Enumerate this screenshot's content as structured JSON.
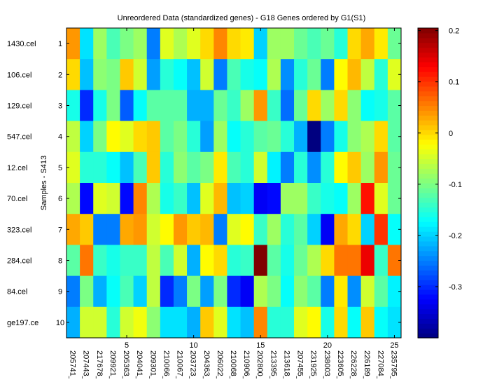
{
  "chart_data": {
    "type": "heatmap",
    "title": "Unreordered Data (standardized genes) - G18 Genes ordered by G1(S1)",
    "ylabel": "Samples - S413",
    "xlabel": "",
    "x_ticks": [
      "5",
      "10",
      "15",
      "20",
      "25"
    ],
    "x_tick_positions": [
      5,
      10,
      15,
      20,
      25
    ],
    "y_ticks": [
      "1",
      "2",
      "3",
      "4",
      "5",
      "6",
      "7",
      "8",
      "9",
      "10"
    ],
    "columns": [
      "205741_",
      "207443_",
      "217678_",
      "209921_",
      "205363_",
      "204041_",
      "209301_",
      "210066_",
      "210067_",
      "203723_",
      "204363_",
      "206022_",
      "210068_",
      "210906_",
      "202800_",
      "213395_",
      "213618_",
      "207455_",
      "231925_",
      "238003_",
      "223605_",
      "226228_",
      "226189_",
      "227084_",
      "235795_"
    ],
    "rows": [
      "1430.cel",
      "106.cel",
      "129.cel",
      "547.cel",
      "12.cel",
      "70.cel",
      "323.cel",
      "284.cel",
      "84.cel",
      "ge197.ce"
    ],
    "values": [
      [
        0.04,
        -0.19,
        -0.08,
        -0.13,
        -0.1,
        -0.08,
        -0.25,
        -0.04,
        -0.07,
        -0.04,
        0.0,
        0.05,
        0.0,
        -0.01,
        -0.2,
        -0.08,
        -0.08,
        -0.11,
        -0.13,
        -0.11,
        -0.15,
        0.0,
        0.03,
        -0.01,
        -0.11
      ],
      [
        0.0,
        -0.21,
        -0.09,
        -0.1,
        0.01,
        -0.05,
        -0.23,
        -0.15,
        -0.17,
        -0.21,
        -0.05,
        -0.25,
        -0.13,
        -0.16,
        -0.17,
        -0.07,
        -0.24,
        -0.15,
        -0.11,
        -0.25,
        -0.02,
        0.02,
        -0.06,
        -0.15,
        -0.04
      ],
      [
        -0.16,
        -0.3,
        -0.16,
        -0.1,
        -0.27,
        -0.17,
        -0.12,
        -0.12,
        -0.12,
        -0.22,
        -0.22,
        -0.11,
        -0.14,
        -0.08,
        0.04,
        -0.14,
        -0.26,
        -0.11,
        0.0,
        -0.08,
        0.0,
        -0.09,
        -0.17,
        -0.16,
        -0.12
      ],
      [
        -0.06,
        -0.2,
        -0.1,
        -0.02,
        -0.04,
        0.0,
        0.01,
        -0.12,
        -0.1,
        -0.15,
        -0.23,
        -0.08,
        -0.17,
        -0.15,
        -0.12,
        -0.11,
        -0.15,
        -0.22,
        -0.4,
        -0.25,
        -0.16,
        -0.09,
        -0.07,
        0.0,
        -0.12
      ],
      [
        -0.04,
        -0.15,
        -0.15,
        -0.17,
        -0.21,
        -0.13,
        0.01,
        -0.15,
        -0.09,
        -0.12,
        -0.1,
        -0.01,
        -0.13,
        -0.15,
        -0.05,
        -0.18,
        -0.25,
        -0.15,
        -0.24,
        -0.15,
        -0.02,
        0.01,
        -0.08,
        0.04,
        -0.11
      ],
      [
        -0.07,
        -0.32,
        -0.04,
        -0.05,
        -0.32,
        0.05,
        -0.07,
        -0.16,
        -0.14,
        -0.21,
        -0.04,
        0.02,
        -0.21,
        -0.2,
        -0.33,
        -0.32,
        -0.08,
        -0.08,
        -0.14,
        -0.16,
        -0.17,
        -0.08,
        0.12,
        -0.04,
        -0.11
      ],
      [
        0.03,
        0.01,
        -0.25,
        -0.25,
        0.03,
        0.04,
        -0.05,
        -0.02,
        0.04,
        0.01,
        0.02,
        -0.25,
        -0.04,
        -0.02,
        -0.14,
        -0.08,
        -0.15,
        -0.12,
        -0.2,
        -0.33,
        0.03,
        0.0,
        -0.2,
        0.1,
        -0.17
      ],
      [
        -0.12,
        0.06,
        -0.14,
        -0.16,
        -0.14,
        -0.14,
        -0.06,
        -0.13,
        -0.05,
        -0.22,
        -0.02,
        0.0,
        -0.15,
        -0.14,
        0.21,
        -0.12,
        -0.16,
        -0.11,
        -0.07,
        0.0,
        0.06,
        0.06,
        0.14,
        -0.14,
        0.06
      ],
      [
        -0.25,
        -0.1,
        -0.22,
        -0.17,
        -0.13,
        -0.2,
        -0.06,
        -0.3,
        -0.25,
        -0.1,
        -0.23,
        -0.1,
        -0.3,
        -0.33,
        -0.07,
        -0.1,
        -0.17,
        -0.09,
        -0.12,
        -0.25,
        -0.01,
        -0.24,
        -0.05,
        -0.12,
        -0.18
      ],
      [
        -0.22,
        -0.05,
        -0.05,
        -0.15,
        -0.05,
        -0.03,
        -0.09,
        -0.19,
        -0.19,
        -0.22,
        0.01,
        -0.04,
        -0.19,
        -0.21,
        0.05,
        -0.15,
        -0.15,
        -0.04,
        -0.02,
        -0.16,
        0.0,
        -0.17,
        0.01,
        -0.17,
        -0.19
      ]
    ],
    "colormap": "jet",
    "clim": [
      -0.4,
      0.205
    ],
    "colorbar_ticks": [
      "0.2",
      "0.1",
      "0",
      "-0.1",
      "-0.2",
      "-0.3"
    ],
    "colorbar_tick_values": [
      0.2,
      0.1,
      0,
      -0.1,
      -0.2,
      -0.3
    ],
    "colorbar_position": "right",
    "grid": false
  }
}
